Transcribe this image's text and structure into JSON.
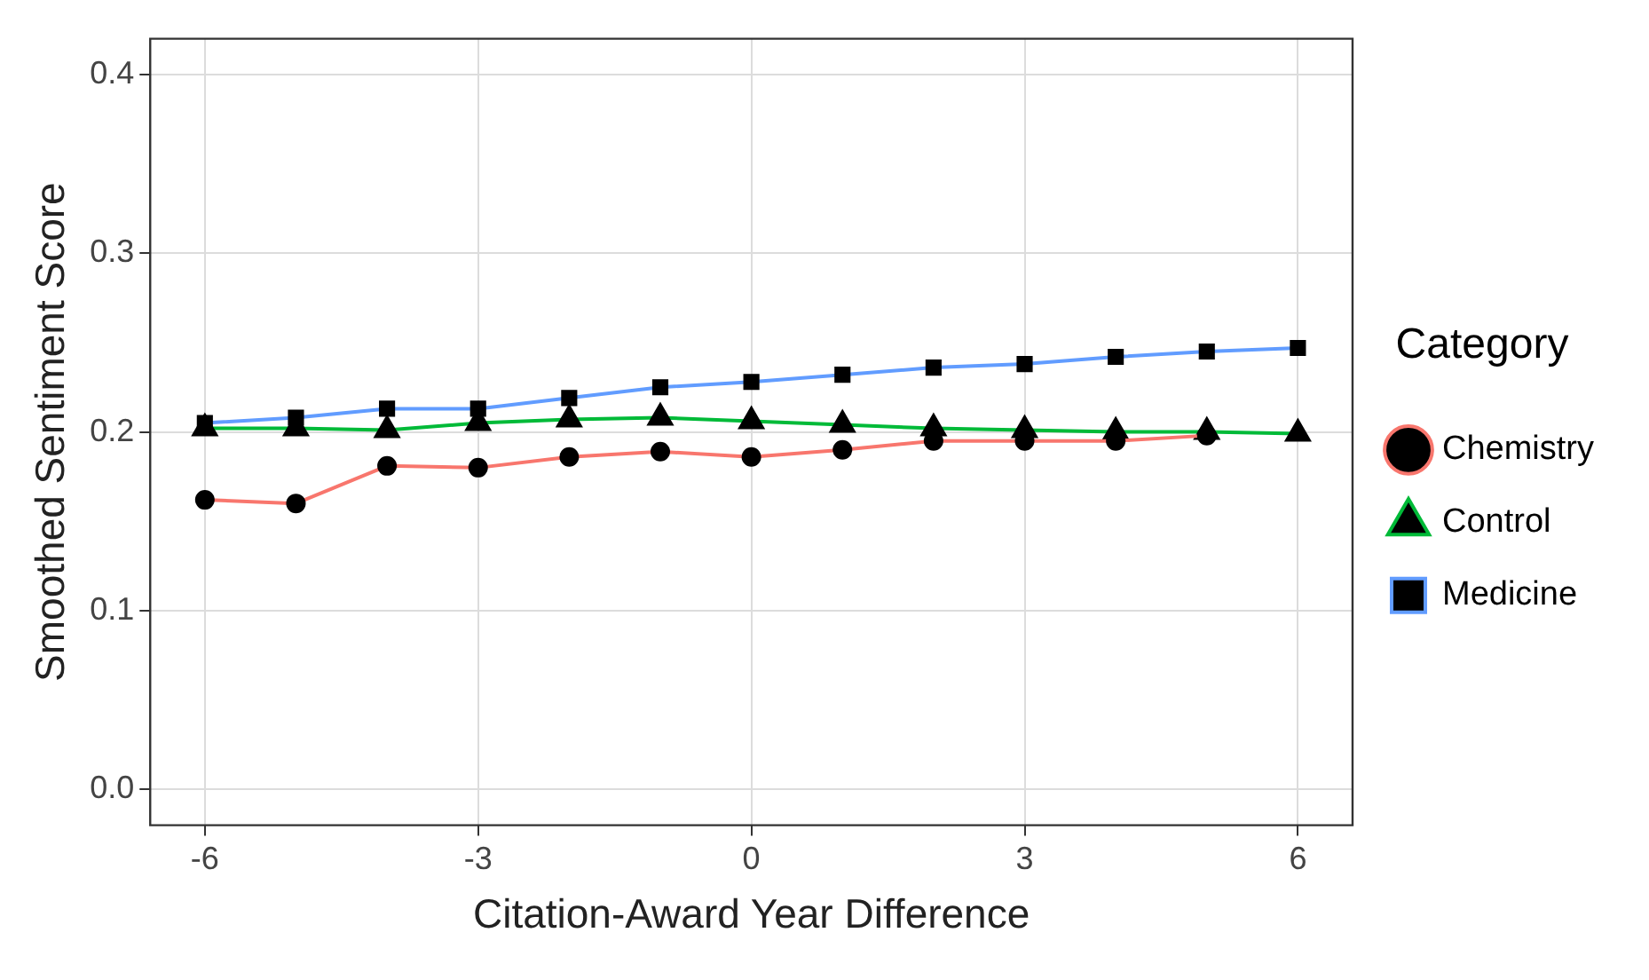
{
  "chart_data": {
    "type": "line",
    "xlabel": "Citation-Award Year Difference",
    "ylabel": "Smoothed Sentiment Score",
    "legend_title": "Category",
    "legend": "right",
    "grid": true,
    "x": [
      -6,
      -5,
      -4,
      -3,
      -2,
      -1,
      0,
      1,
      2,
      3,
      4,
      5,
      6
    ],
    "xlim": [
      -6.6,
      6.6
    ],
    "xticks": [
      -6,
      -3,
      0,
      3,
      6
    ],
    "ylim": [
      -0.02,
      0.42
    ],
    "yticks": [
      {
        "value": 0,
        "label": "0.0"
      },
      0.1,
      0.2,
      0.3,
      0.4
    ],
    "series": [
      {
        "name": "Chemistry",
        "color": "#f8766d",
        "marker": "circle",
        "values": [
          0.162,
          0.16,
          0.181,
          0.18,
          0.186,
          0.189,
          0.186,
          0.19,
          0.195,
          0.195,
          0.195,
          0.198,
          null
        ]
      },
      {
        "name": "Control",
        "color": "#00ba38",
        "marker": "triangle",
        "values": [
          0.202,
          0.202,
          0.201,
          0.205,
          0.207,
          0.208,
          0.206,
          0.204,
          0.202,
          0.201,
          0.2,
          0.2,
          0.199
        ]
      },
      {
        "name": "Medicine",
        "color": "#619cff",
        "marker": "square",
        "values": [
          0.205,
          0.208,
          0.213,
          0.213,
          0.219,
          0.225,
          0.228,
          0.232,
          0.236,
          0.238,
          0.242,
          0.245,
          0.247
        ]
      }
    ]
  }
}
